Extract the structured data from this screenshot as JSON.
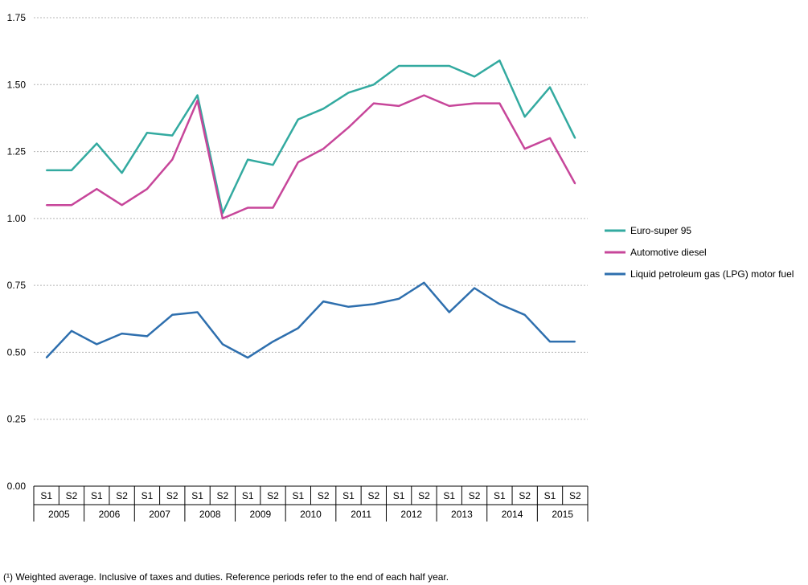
{
  "chart_data": {
    "type": "line",
    "title": "",
    "xlabel": "",
    "ylabel": "",
    "ylim": [
      0,
      1.75
    ],
    "yticks": [
      "0.00",
      "0.25",
      "0.50",
      "0.75",
      "1.00",
      "1.25",
      "1.50",
      "1.75"
    ],
    "grid": "horizontal dashed",
    "legend_position": "right",
    "half_labels": [
      "S1",
      "S2"
    ],
    "years": [
      "2005",
      "2006",
      "2007",
      "2008",
      "2009",
      "2010",
      "2011",
      "2012",
      "2013",
      "2014",
      "2015"
    ],
    "categories": [
      "2005 S1",
      "2005 S2",
      "2006 S1",
      "2006 S2",
      "2007 S1",
      "2007 S2",
      "2008 S1",
      "2008 S2",
      "2009 S1",
      "2009 S2",
      "2010 S1",
      "2010 S2",
      "2011 S1",
      "2011 S2",
      "2012 S1",
      "2012 S2",
      "2013 S1",
      "2013 S2",
      "2014 S1",
      "2014 S2",
      "2015 S1",
      "2015 S2"
    ],
    "series": [
      {
        "name": "Euro-super 95",
        "color": "#33aaa0",
        "values": [
          1.18,
          1.18,
          1.28,
          1.17,
          1.32,
          1.31,
          1.46,
          1.02,
          1.22,
          1.2,
          1.37,
          1.41,
          1.47,
          1.5,
          1.57,
          1.57,
          1.57,
          1.53,
          1.59,
          1.38,
          1.49,
          1.3
        ]
      },
      {
        "name": "Automotive diesel",
        "color": "#c7469a",
        "values": [
          1.05,
          1.05,
          1.11,
          1.05,
          1.11,
          1.22,
          1.44,
          1.0,
          1.04,
          1.04,
          1.21,
          1.26,
          1.34,
          1.43,
          1.42,
          1.46,
          1.42,
          1.43,
          1.43,
          1.26,
          1.3,
          1.13
        ]
      },
      {
        "name": "Liquid petroleum gas (LPG) motor fuel",
        "color": "#2e6fae",
        "values": [
          0.48,
          0.58,
          0.53,
          0.57,
          0.56,
          0.64,
          0.65,
          0.53,
          0.48,
          0.54,
          0.59,
          0.69,
          0.67,
          0.68,
          0.7,
          0.76,
          0.65,
          0.74,
          0.68,
          0.64,
          0.54,
          0.54
        ]
      }
    ]
  },
  "footnote": "(¹) Weighted average. Inclusive of taxes and duties. Reference periods refer to the end of each half year."
}
